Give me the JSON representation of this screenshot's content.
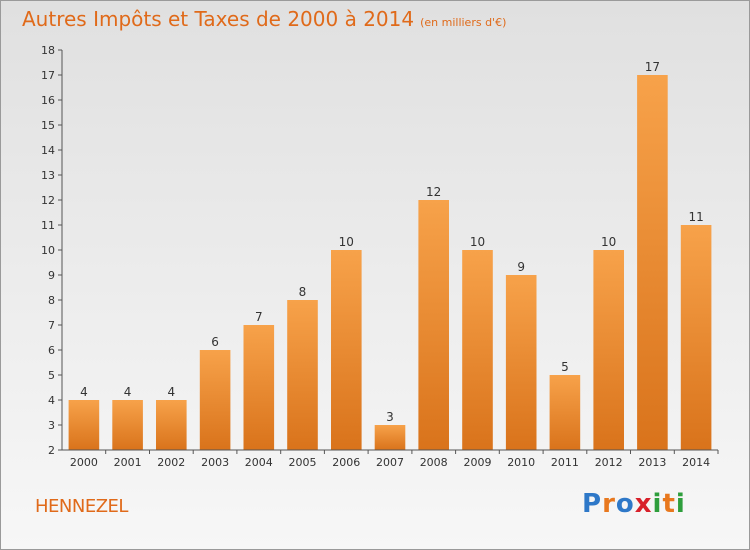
{
  "page": {
    "title": "Autres Impôts et Taxes de 2000 à 2014",
    "title_unit": "(en milliers d'€)",
    "commune": "HENNEZEL",
    "logo": [
      "P",
      "r",
      "o",
      "x",
      "i",
      "t",
      "i"
    ],
    "logo_colors": [
      "#2e78c8",
      "#e8781e",
      "#2e78c8",
      "#d8202a",
      "#2e9e3c",
      "#e8781e",
      "#2e9e3c"
    ]
  },
  "chart_data": {
    "type": "bar",
    "title": "Autres Impôts et Taxes de 2000 à 2014",
    "subtitle": "(en milliers d'€)",
    "categories": [
      "2000",
      "2001",
      "2002",
      "2003",
      "2004",
      "2005",
      "2006",
      "2007",
      "2008",
      "2009",
      "2010",
      "2011",
      "2012",
      "2013",
      "2014"
    ],
    "values": [
      4,
      4,
      4,
      6,
      7,
      8,
      10,
      3,
      12,
      10,
      9,
      5,
      10,
      17,
      11
    ],
    "ylim": [
      2,
      18
    ],
    "yticks": [
      "2",
      "3",
      "4",
      "5",
      "6",
      "7",
      "8",
      "9",
      "10",
      "11",
      "12",
      "13",
      "14",
      "15",
      "16",
      "17",
      "18"
    ],
    "bar_color_top": "#f7a24a",
    "bar_color_bottom": "#d9731b",
    "grid": false,
    "legend": "none"
  }
}
